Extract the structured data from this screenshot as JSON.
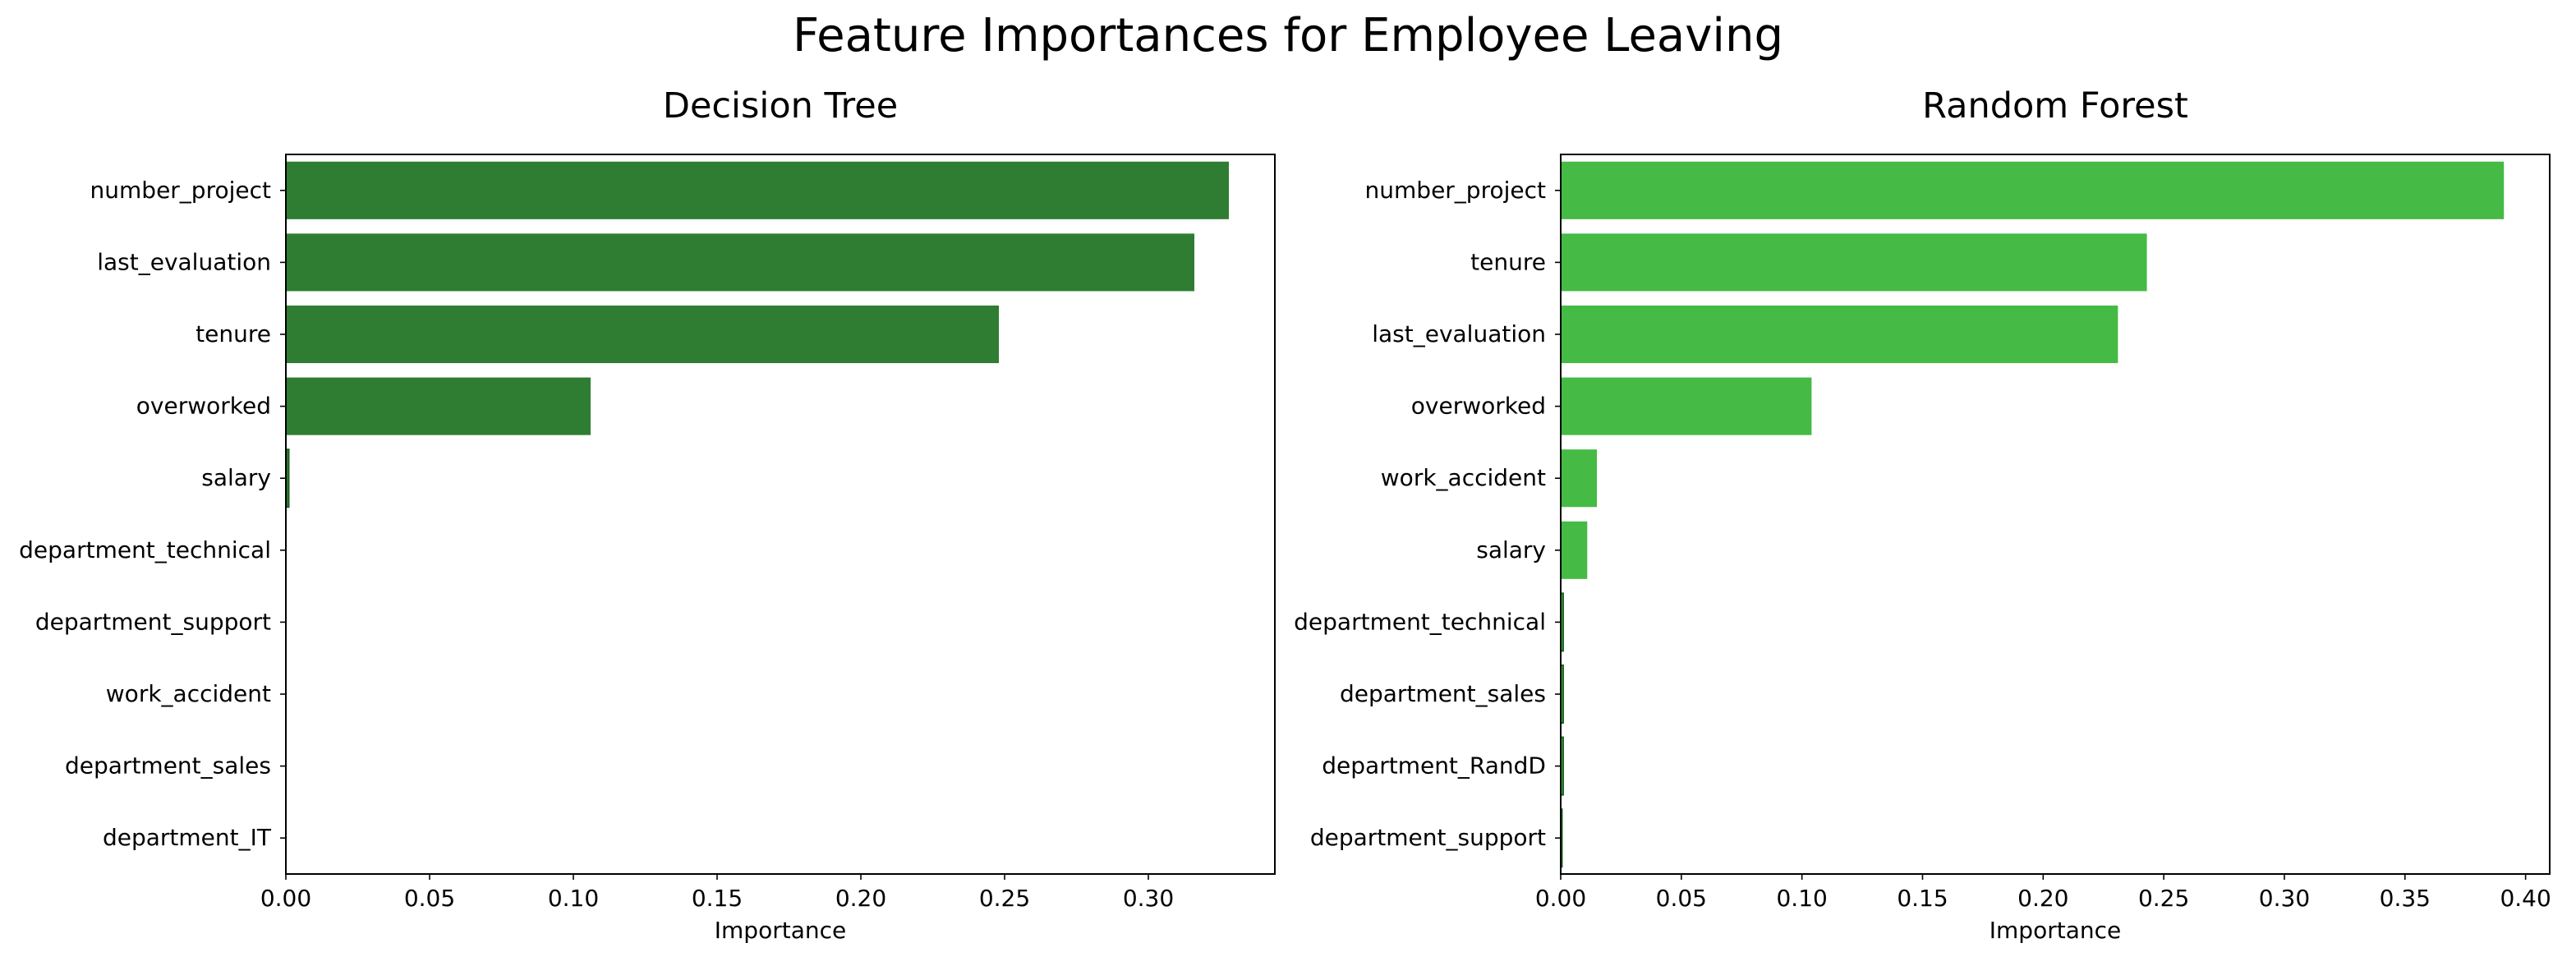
{
  "figure": {
    "title": "Feature Importances for Employee Leaving"
  },
  "chart_data": [
    {
      "type": "bar",
      "orientation": "horizontal",
      "title": "Decision Tree",
      "xlabel": "Importance",
      "ylabel": "",
      "xlim": [
        0,
        0.344
      ],
      "xticks": [
        "0.00",
        "0.05",
        "0.10",
        "0.15",
        "0.20",
        "0.25",
        "0.30"
      ],
      "grid": false,
      "color": "#2e7d32",
      "categories": [
        "number_project",
        "last_evaluation",
        "tenure",
        "overworked",
        "salary",
        "department_technical",
        "department_support",
        "work_accident",
        "department_sales",
        "department_IT"
      ],
      "values": [
        0.328,
        0.316,
        0.248,
        0.106,
        0.001,
        0.0,
        0.0,
        0.0,
        0.0,
        0.0
      ]
    },
    {
      "type": "bar",
      "orientation": "horizontal",
      "title": "Random Forest",
      "xlabel": "Importance",
      "ylabel": "",
      "xlim": [
        0,
        0.41
      ],
      "xticks": [
        "0.00",
        "0.05",
        "0.10",
        "0.15",
        "0.20",
        "0.25",
        "0.30",
        "0.35",
        "0.40"
      ],
      "grid": false,
      "color": "#45ba45",
      "categories": [
        "number_project",
        "tenure",
        "last_evaluation",
        "overworked",
        "work_accident",
        "salary",
        "department_technical",
        "department_sales",
        "department_RandD",
        "department_support"
      ],
      "values": [
        0.391,
        0.243,
        0.231,
        0.104,
        0.015,
        0.011,
        0.001,
        0.001,
        0.001,
        0.0005
      ]
    }
  ]
}
